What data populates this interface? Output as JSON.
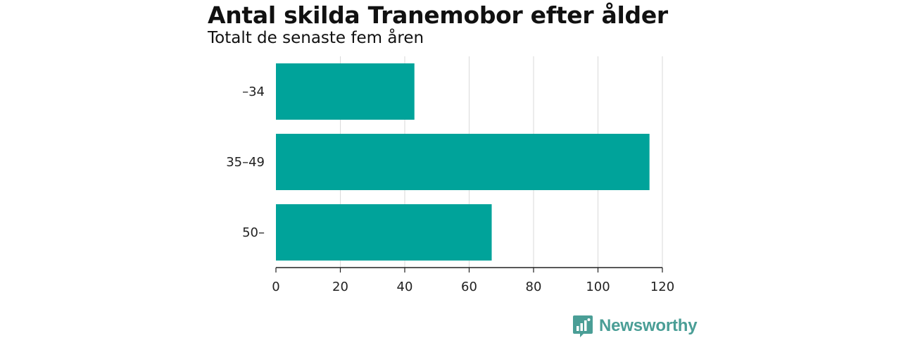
{
  "chart_data": {
    "type": "bar",
    "orientation": "horizontal",
    "title": "Antal skilda Tranemobor efter ålder",
    "subtitle": "Totalt de senaste fem åren",
    "categories": [
      "–34",
      "35–49",
      "50–"
    ],
    "values": [
      43,
      116,
      67
    ],
    "xlim": [
      0,
      120
    ],
    "xticks": [
      "0",
      "20",
      "40",
      "60",
      "80",
      "100",
      "120"
    ],
    "grid": true,
    "bar_color": "#00a39a"
  },
  "brand": {
    "name": "Newsworthy",
    "logo_icon": "bar-chart-speech-bubble-icon",
    "color": "#4a9e96"
  }
}
